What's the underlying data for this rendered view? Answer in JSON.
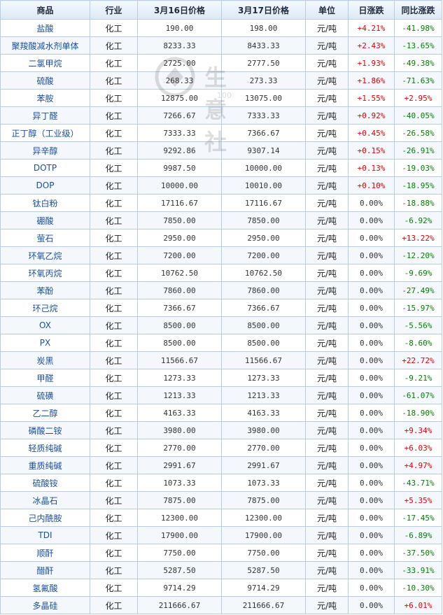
{
  "headers": {
    "product": "商品",
    "industry": "行业",
    "price1": "3月16日价格",
    "price2": "3月17日价格",
    "unit": "单位",
    "daily": "日涨跌",
    "yoy": "同比涨跌"
  },
  "watermark": {
    "text": "生意社",
    "url": "100"
  },
  "colors": {
    "up": "#e00000",
    "down": "#008000",
    "link": "#1a4f9c",
    "border": "#b8cde3"
  },
  "rows": [
    {
      "name": "盐酸",
      "industry": "化工",
      "p1": "190.00",
      "p2": "198.00",
      "unit": "元/吨",
      "daily": "+4.21%",
      "yoy": "-41.98%"
    },
    {
      "name": "聚羧酸减水剂单体",
      "industry": "化工",
      "p1": "8233.33",
      "p2": "8433.33",
      "unit": "元/吨",
      "daily": "+2.43%",
      "yoy": "-13.65%"
    },
    {
      "name": "二氯甲烷",
      "industry": "化工",
      "p1": "2725.00",
      "p2": "2777.50",
      "unit": "元/吨",
      "daily": "+1.93%",
      "yoy": "-49.38%"
    },
    {
      "name": "硫酸",
      "industry": "化工",
      "p1": "268.33",
      "p2": "273.33",
      "unit": "元/吨",
      "daily": "+1.86%",
      "yoy": "-71.63%"
    },
    {
      "name": "苯胺",
      "industry": "化工",
      "p1": "12875.00",
      "p2": "13075.00",
      "unit": "元/吨",
      "daily": "+1.55%",
      "yoy": "+2.95%"
    },
    {
      "name": "异丁醛",
      "industry": "化工",
      "p1": "7266.67",
      "p2": "7333.33",
      "unit": "元/吨",
      "daily": "+0.92%",
      "yoy": "-40.05%"
    },
    {
      "name": "正丁醇（工业级）",
      "industry": "化工",
      "p1": "7333.33",
      "p2": "7366.67",
      "unit": "元/吨",
      "daily": "+0.45%",
      "yoy": "-26.58%"
    },
    {
      "name": "异辛醇",
      "industry": "化工",
      "p1": "9292.86",
      "p2": "9307.14",
      "unit": "元/吨",
      "daily": "+0.15%",
      "yoy": "-26.91%"
    },
    {
      "name": "DOTP",
      "industry": "化工",
      "p1": "9987.50",
      "p2": "10000.00",
      "unit": "元/吨",
      "daily": "+0.13%",
      "yoy": "-19.03%"
    },
    {
      "name": "DOP",
      "industry": "化工",
      "p1": "10000.00",
      "p2": "10010.00",
      "unit": "元/吨",
      "daily": "+0.10%",
      "yoy": "-18.95%"
    },
    {
      "name": "钛白粉",
      "industry": "化工",
      "p1": "17116.67",
      "p2": "17116.67",
      "unit": "元/吨",
      "daily": "0.00%",
      "yoy": "-18.88%"
    },
    {
      "name": "硼酸",
      "industry": "化工",
      "p1": "7850.00",
      "p2": "7850.00",
      "unit": "元/吨",
      "daily": "0.00%",
      "yoy": "-6.92%"
    },
    {
      "name": "萤石",
      "industry": "化工",
      "p1": "2950.00",
      "p2": "2950.00",
      "unit": "元/吨",
      "daily": "0.00%",
      "yoy": "+13.22%"
    },
    {
      "name": "环氧乙烷",
      "industry": "化工",
      "p1": "7200.00",
      "p2": "7200.00",
      "unit": "元/吨",
      "daily": "0.00%",
      "yoy": "-12.20%"
    },
    {
      "name": "环氧丙烷",
      "industry": "化工",
      "p1": "10762.50",
      "p2": "10762.50",
      "unit": "元/吨",
      "daily": "0.00%",
      "yoy": "-9.69%"
    },
    {
      "name": "苯酚",
      "industry": "化工",
      "p1": "7860.00",
      "p2": "7860.00",
      "unit": "元/吨",
      "daily": "0.00%",
      "yoy": "-27.49%"
    },
    {
      "name": "环己烷",
      "industry": "化工",
      "p1": "7366.67",
      "p2": "7366.67",
      "unit": "元/吨",
      "daily": "0.00%",
      "yoy": "-15.97%"
    },
    {
      "name": "OX",
      "industry": "化工",
      "p1": "8500.00",
      "p2": "8500.00",
      "unit": "元/吨",
      "daily": "0.00%",
      "yoy": "-5.56%"
    },
    {
      "name": "PX",
      "industry": "化工",
      "p1": "8500.00",
      "p2": "8500.00",
      "unit": "元/吨",
      "daily": "0.00%",
      "yoy": "-8.60%"
    },
    {
      "name": "炭黑",
      "industry": "化工",
      "p1": "11566.67",
      "p2": "11566.67",
      "unit": "元/吨",
      "daily": "0.00%",
      "yoy": "+22.72%"
    },
    {
      "name": "甲醛",
      "industry": "化工",
      "p1": "1273.33",
      "p2": "1273.33",
      "unit": "元/吨",
      "daily": "0.00%",
      "yoy": "-9.21%"
    },
    {
      "name": "硫磺",
      "industry": "化工",
      "p1": "1213.33",
      "p2": "1213.33",
      "unit": "元/吨",
      "daily": "0.00%",
      "yoy": "-61.07%"
    },
    {
      "name": "乙二醇",
      "industry": "化工",
      "p1": "4163.33",
      "p2": "4163.33",
      "unit": "元/吨",
      "daily": "0.00%",
      "yoy": "-18.90%"
    },
    {
      "name": "磷酸二铵",
      "industry": "化工",
      "p1": "3980.00",
      "p2": "3980.00",
      "unit": "元/吨",
      "daily": "0.00%",
      "yoy": "+9.34%"
    },
    {
      "name": "轻质纯碱",
      "industry": "化工",
      "p1": "2770.00",
      "p2": "2770.00",
      "unit": "元/吨",
      "daily": "0.00%",
      "yoy": "+6.03%"
    },
    {
      "name": "重质纯碱",
      "industry": "化工",
      "p1": "2991.67",
      "p2": "2991.67",
      "unit": "元/吨",
      "daily": "0.00%",
      "yoy": "+4.97%"
    },
    {
      "name": "硫酸铵",
      "industry": "化工",
      "p1": "1073.33",
      "p2": "1073.33",
      "unit": "元/吨",
      "daily": "0.00%",
      "yoy": "-43.71%"
    },
    {
      "name": "冰晶石",
      "industry": "化工",
      "p1": "7875.00",
      "p2": "7875.00",
      "unit": "元/吨",
      "daily": "0.00%",
      "yoy": "+5.35%"
    },
    {
      "name": "己内酰胺",
      "industry": "化工",
      "p1": "12300.00",
      "p2": "12300.00",
      "unit": "元/吨",
      "daily": "0.00%",
      "yoy": "-17.45%"
    },
    {
      "name": "TDI",
      "industry": "化工",
      "p1": "17900.00",
      "p2": "17900.00",
      "unit": "元/吨",
      "daily": "0.00%",
      "yoy": "-6.89%"
    },
    {
      "name": "顺酐",
      "industry": "化工",
      "p1": "7750.00",
      "p2": "7750.00",
      "unit": "元/吨",
      "daily": "0.00%",
      "yoy": "-37.50%"
    },
    {
      "name": "醋酐",
      "industry": "化工",
      "p1": "5287.50",
      "p2": "5287.50",
      "unit": "元/吨",
      "daily": "0.00%",
      "yoy": "-33.91%"
    },
    {
      "name": "氢氟酸",
      "industry": "化工",
      "p1": "9714.29",
      "p2": "9714.29",
      "unit": "元/吨",
      "daily": "0.00%",
      "yoy": "-10.30%"
    },
    {
      "name": "多晶硅",
      "industry": "化工",
      "p1": "211666.67",
      "p2": "211666.67",
      "unit": "元/吨",
      "daily": "0.00%",
      "yoy": "+6.01%"
    }
  ]
}
